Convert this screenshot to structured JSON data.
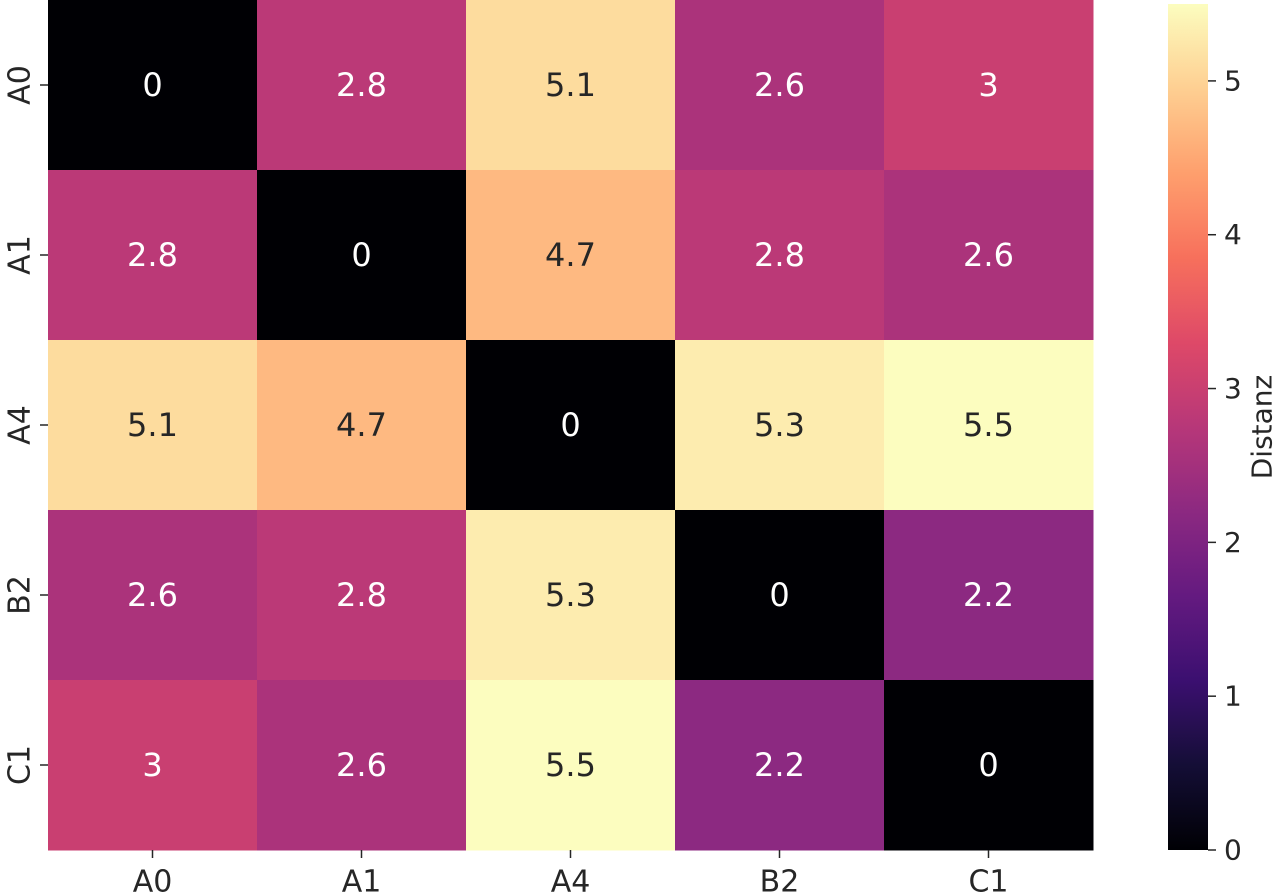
{
  "chart_data": {
    "type": "heatmap",
    "title": "",
    "xlabel": "",
    "ylabel": "",
    "x_categories": [
      "A0",
      "A1",
      "A4",
      "B2",
      "C1"
    ],
    "y_categories": [
      "A0",
      "A1",
      "A4",
      "B2",
      "C1"
    ],
    "values": [
      [
        0,
        2.8,
        5.1,
        2.6,
        3
      ],
      [
        2.8,
        0,
        4.7,
        2.8,
        2.6
      ],
      [
        5.1,
        4.7,
        0,
        5.3,
        5.5
      ],
      [
        2.6,
        2.8,
        5.3,
        0,
        2.2
      ],
      [
        3,
        2.6,
        5.5,
        2.2,
        0
      ]
    ],
    "colormap": "magma",
    "colorbar": {
      "label": "Distanz",
      "range": [
        0,
        5.5
      ],
      "ticks": [
        0,
        1,
        2,
        3,
        4,
        5
      ]
    },
    "annotate_cells": true,
    "grid": false
  }
}
